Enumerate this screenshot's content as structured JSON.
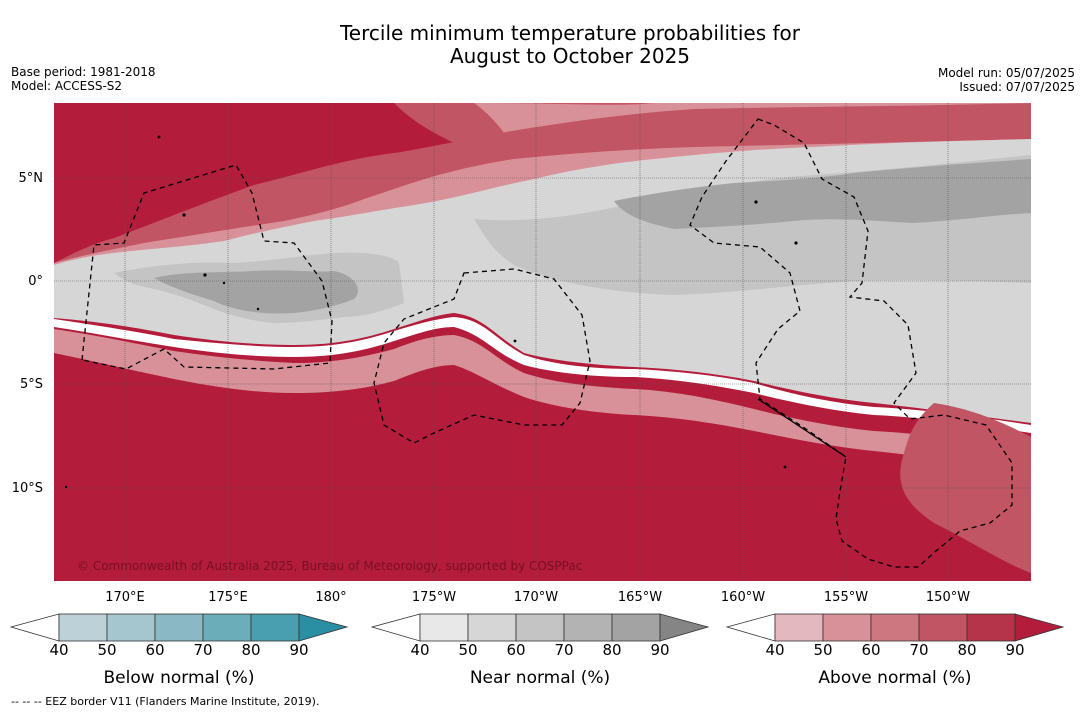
{
  "title": {
    "line1": "Tercile minimum temperature probabilities for",
    "line2": "August to October 2025"
  },
  "meta": {
    "base_period": "Base period: 1981-2018",
    "model": "Model: ACCESS-S2",
    "model_run": "Model run: 05/07/2025",
    "issued": "Issued: 07/07/2025"
  },
  "map": {
    "region": "Tropical central Pacific",
    "lat_labels": [
      "5°N",
      "0°",
      "5°S",
      "10°S"
    ],
    "lon_labels": [
      "170°E",
      "175°E",
      "180°",
      "175°W",
      "170°W",
      "165°W",
      "160°W",
      "155°W",
      "150°W"
    ],
    "copyright": "© Commonwealth of Australia 2025, Bureau of Meteorology, supported by COSPPac",
    "dominant_category_by_zone": [
      {
        "zone": "North of ~5°N",
        "category": "Above normal",
        "probability_pct": "50-90"
      },
      {
        "zone": "~1°N to ~3°S (west) / ~7°S (east)",
        "category": "Near normal",
        "probability_pct": "40-80"
      },
      {
        "zone": "South of ~4°S",
        "category": "Above normal",
        "probability_pct": "70-90"
      }
    ]
  },
  "colorbars": [
    {
      "name": "below",
      "title": "Below normal (%)",
      "ticks": [
        "40",
        "50",
        "60",
        "70",
        "80",
        "90"
      ],
      "colors": [
        "#ffffff",
        "#bdd1d9",
        "#a5c6ce",
        "#8ab9c4",
        "#6badb9",
        "#4a9fae",
        "#2a8fa3"
      ]
    },
    {
      "name": "near",
      "title": "Near normal (%)",
      "ticks": [
        "40",
        "50",
        "60",
        "70",
        "80",
        "90"
      ],
      "colors": [
        "#ffffff",
        "#e8e8e8",
        "#d6d6d6",
        "#c4c4c4",
        "#b3b3b3",
        "#a3a3a3",
        "#858585"
      ]
    },
    {
      "name": "above",
      "title": "Above normal (%)",
      "ticks": [
        "40",
        "50",
        "60",
        "70",
        "80",
        "90"
      ],
      "colors": [
        "#ffffff",
        "#e3b8be",
        "#d89199",
        "#cd7880",
        "#c25563",
        "#b63449",
        "#b31d3b"
      ]
    }
  ],
  "footnote": "--  --  -- EEZ border V11 (Flanders Marine Institute, 2019)."
}
